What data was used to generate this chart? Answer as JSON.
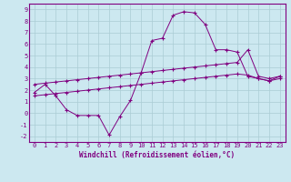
{
  "xlabel": "Windchill (Refroidissement éolien,°C)",
  "bg_color": "#cce8f0",
  "line_color": "#800080",
  "grid_color": "#aaccd4",
  "spine_color": "#800080",
  "xlim": [
    -0.5,
    23.5
  ],
  "ylim": [
    -2.5,
    9.5
  ],
  "xticks": [
    0,
    1,
    2,
    3,
    4,
    5,
    6,
    7,
    8,
    9,
    10,
    11,
    12,
    13,
    14,
    15,
    16,
    17,
    18,
    19,
    20,
    21,
    22,
    23
  ],
  "yticks": [
    -2,
    -1,
    0,
    1,
    2,
    3,
    4,
    5,
    6,
    7,
    8,
    9
  ],
  "line1_x": [
    0,
    1,
    2,
    3,
    4,
    5,
    6,
    7,
    8,
    9,
    10,
    11,
    12,
    13,
    14,
    15,
    16,
    17,
    18,
    19,
    20,
    21,
    22,
    23
  ],
  "line1_y": [
    1.8,
    2.5,
    1.5,
    0.3,
    -0.2,
    -0.2,
    -0.2,
    -1.9,
    -0.3,
    1.1,
    3.5,
    6.3,
    6.5,
    8.5,
    8.8,
    8.7,
    7.7,
    5.5,
    5.5,
    5.3,
    3.2,
    3.0,
    2.8,
    3.2
  ],
  "line2_x": [
    0,
    1,
    2,
    3,
    4,
    5,
    6,
    7,
    8,
    9,
    10,
    11,
    12,
    13,
    14,
    15,
    16,
    17,
    18,
    19,
    20,
    21,
    22,
    23
  ],
  "line2_y": [
    2.5,
    2.6,
    2.7,
    2.8,
    2.9,
    3.0,
    3.1,
    3.2,
    3.3,
    3.4,
    3.5,
    3.6,
    3.7,
    3.8,
    3.9,
    4.0,
    4.1,
    4.2,
    4.3,
    4.4,
    5.5,
    3.2,
    3.0,
    3.2
  ],
  "line3_x": [
    0,
    1,
    2,
    3,
    4,
    5,
    6,
    7,
    8,
    9,
    10,
    11,
    12,
    13,
    14,
    15,
    16,
    17,
    18,
    19,
    20,
    21,
    22,
    23
  ],
  "line3_y": [
    1.5,
    1.6,
    1.7,
    1.8,
    1.9,
    2.0,
    2.1,
    2.2,
    2.3,
    2.4,
    2.5,
    2.6,
    2.7,
    2.8,
    2.9,
    3.0,
    3.1,
    3.2,
    3.3,
    3.4,
    3.3,
    3.0,
    2.8,
    3.0
  ]
}
